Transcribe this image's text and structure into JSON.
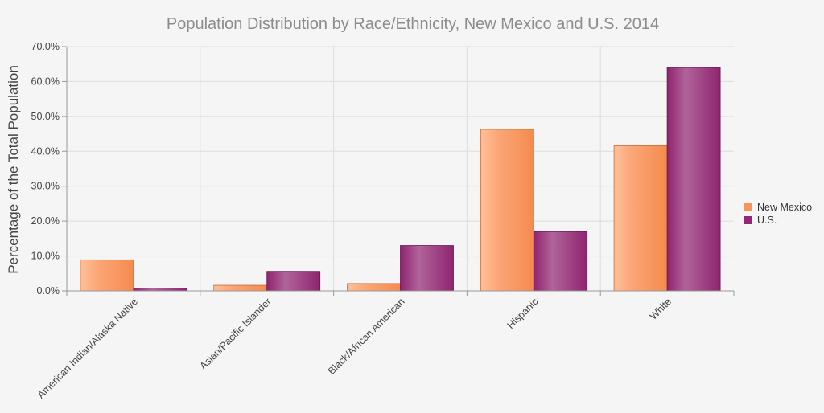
{
  "chart_data": {
    "type": "bar",
    "title": "Population Distribution by Race/Ethnicity, New Mexico and U.S. 2014",
    "xlabel": "",
    "ylabel": "Percentage of the Total Population",
    "ylim": [
      0,
      70
    ],
    "ytick_step": 10,
    "ytick_labels": [
      "0.0%",
      "10.0%",
      "20.0%",
      "30.0%",
      "40.0%",
      "50.0%",
      "60.0%",
      "70.0%"
    ],
    "categories": [
      "American Indian/Alaska Native",
      "Asian/Pacific Islander",
      "Black/African American",
      "Hispanic",
      "White"
    ],
    "series": [
      {
        "name": "New Mexico",
        "color": "#f7945c",
        "values": [
          8.9,
          1.6,
          2.1,
          46.3,
          41.6
        ]
      },
      {
        "name": "U.S.",
        "color": "#952676",
        "values": [
          0.8,
          5.6,
          13.0,
          17.0,
          64.0
        ]
      }
    ],
    "grid": true,
    "legend": "right"
  }
}
